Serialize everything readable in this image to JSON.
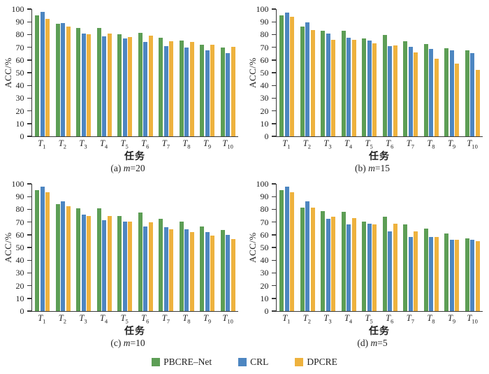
{
  "figure": {
    "ylabel": "ACC/%",
    "xlabel": "任务",
    "ylim": [
      0,
      100
    ],
    "yticks": [
      0,
      10,
      20,
      30,
      40,
      50,
      60,
      70,
      80,
      90,
      100
    ],
    "axis_color": "#3a3a3a",
    "background": "#ffffff"
  },
  "legend": {
    "position": "bottom-center",
    "items": [
      {
        "label": "PBCRE–Net",
        "color": "#5d9e55"
      },
      {
        "label": "CRL",
        "color": "#4d86c1"
      },
      {
        "label": "DPCRE",
        "color": "#eeb23e"
      }
    ]
  },
  "chart_data": [
    {
      "type": "bar",
      "title": "(a) m=20",
      "caption_parts": {
        "prefix": "(a) ",
        "italic": "m",
        "suffix": "=20"
      },
      "xlabel": "任务",
      "ylabel": "ACC/%",
      "ylim": [
        0,
        100
      ],
      "grid": false,
      "categories": [
        "T1",
        "T2",
        "T3",
        "T4",
        "T5",
        "T6",
        "T7",
        "T8",
        "T9",
        "T10"
      ],
      "series": [
        {
          "name": "PBCRE–Net",
          "values": [
            95,
            88.5,
            85,
            85,
            80.5,
            81.5,
            77.5,
            75.5,
            72,
            70
          ]
        },
        {
          "name": "CRL",
          "values": [
            98,
            89,
            81,
            78.5,
            77,
            74,
            71,
            70,
            67.5,
            65.5
          ]
        },
        {
          "name": "DPCRE",
          "values": [
            92.5,
            86,
            80,
            81,
            78,
            79,
            75,
            74,
            72,
            70.5
          ]
        }
      ]
    },
    {
      "type": "bar",
      "title": "(b) m=15",
      "caption_parts": {
        "prefix": "(b) ",
        "italic": "m",
        "suffix": "=15"
      },
      "xlabel": "任务",
      "ylabel": "ACC/%",
      "ylim": [
        0,
        100
      ],
      "grid": false,
      "categories": [
        "T1",
        "T2",
        "T3",
        "T4",
        "T5",
        "T6",
        "T7",
        "T8",
        "T9",
        "T10"
      ],
      "series": [
        {
          "name": "PBCRE–Net",
          "values": [
            95,
            86.5,
            83,
            83,
            77,
            79.5,
            75,
            72.5,
            69.5,
            67.5
          ]
        },
        {
          "name": "CRL",
          "values": [
            97.5,
            89.5,
            81,
            77.5,
            75.5,
            71,
            70.5,
            68.5,
            67.5,
            65.5
          ]
        },
        {
          "name": "DPCRE",
          "values": [
            94,
            83.5,
            76,
            76,
            73,
            71.5,
            66,
            61,
            57,
            52
          ]
        }
      ]
    },
    {
      "type": "bar",
      "title": "(c) m=10",
      "caption_parts": {
        "prefix": "(c) ",
        "italic": "m",
        "suffix": "=10"
      },
      "xlabel": "任务",
      "ylabel": "ACC/%",
      "ylim": [
        0,
        100
      ],
      "grid": false,
      "categories": [
        "T1",
        "T2",
        "T3",
        "T4",
        "T5",
        "T6",
        "T7",
        "T8",
        "T9",
        "T10"
      ],
      "series": [
        {
          "name": "PBCRE–Net",
          "values": [
            95,
            84,
            81,
            81,
            74.5,
            77.5,
            72.5,
            70.5,
            66.5,
            64
          ]
        },
        {
          "name": "CRL",
          "values": [
            98,
            86.5,
            76,
            71.5,
            70.5,
            66.5,
            66,
            64.5,
            62,
            60
          ]
        },
        {
          "name": "DPCRE",
          "values": [
            93.5,
            82.5,
            75,
            74.5,
            70.5,
            70,
            64.5,
            62,
            59.5,
            56.5
          ]
        }
      ]
    },
    {
      "type": "bar",
      "title": "(d) m=5",
      "caption_parts": {
        "prefix": "(d) ",
        "italic": "m",
        "suffix": "=5"
      },
      "xlabel": "任务",
      "ylabel": "ACC/%",
      "ylim": [
        0,
        100
      ],
      "grid": false,
      "categories": [
        "T1",
        "T2",
        "T3",
        "T4",
        "T5",
        "T6",
        "T7",
        "T8",
        "T9",
        "T10"
      ],
      "series": [
        {
          "name": "PBCRE–Net",
          "values": [
            95,
            81.5,
            78.5,
            78,
            70.5,
            74,
            68,
            65,
            61,
            57
          ]
        },
        {
          "name": "CRL",
          "values": [
            98,
            86,
            72.5,
            68,
            68.5,
            62.5,
            58,
            58.5,
            56,
            56
          ]
        },
        {
          "name": "DPCRE",
          "values": [
            93.5,
            81.5,
            74,
            73,
            68,
            68.5,
            62.5,
            58.5,
            56,
            55
          ]
        }
      ]
    }
  ]
}
